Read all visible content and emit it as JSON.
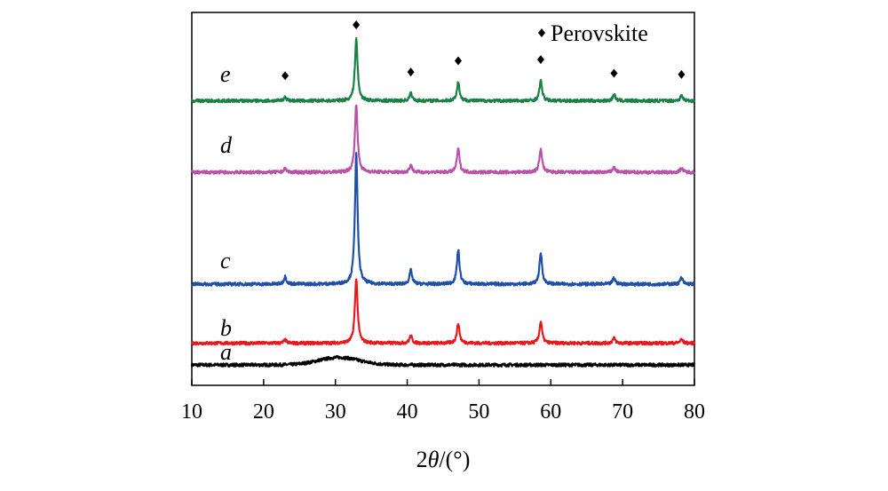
{
  "chart_data": {
    "type": "line",
    "title": "",
    "xlabel_prefix": "2",
    "xlabel_theta": "θ",
    "xlabel_suffix": "/(°)",
    "ylabel": "",
    "xlim": [
      10,
      80
    ],
    "xticks": [
      10,
      20,
      30,
      40,
      50,
      60,
      70,
      80
    ],
    "legend": {
      "marker": "diamond",
      "label": "Perovskite",
      "position": "top-right"
    },
    "marker_positions": [
      23.0,
      32.9,
      40.5,
      47.1,
      58.6,
      68.8,
      78.2
    ],
    "series": [
      {
        "name": "a",
        "color": "#000000",
        "baseline": 0.0,
        "broad_hump": {
          "center": 30.5,
          "width": 4.0,
          "height": 0.12
        },
        "peaks": []
      },
      {
        "name": "b",
        "color": "#e8191c",
        "baseline": 0.35,
        "peaks": [
          [
            23.0,
            0.05
          ],
          [
            32.9,
            1.05
          ],
          [
            40.5,
            0.12
          ],
          [
            47.1,
            0.32
          ],
          [
            58.6,
            0.35
          ],
          [
            68.8,
            0.08
          ],
          [
            78.2,
            0.06
          ]
        ]
      },
      {
        "name": "c",
        "color": "#1f4fa6",
        "baseline": 1.3,
        "peaks": [
          [
            23.0,
            0.12
          ],
          [
            32.9,
            2.1
          ],
          [
            40.5,
            0.22
          ],
          [
            47.1,
            0.55
          ],
          [
            58.6,
            0.5
          ],
          [
            68.8,
            0.1
          ],
          [
            78.2,
            0.1
          ]
        ]
      },
      {
        "name": "d",
        "color": "#b853a8",
        "baseline": 3.1,
        "peaks": [
          [
            23.0,
            0.06
          ],
          [
            32.9,
            1.1
          ],
          [
            40.5,
            0.12
          ],
          [
            47.1,
            0.38
          ],
          [
            58.6,
            0.38
          ],
          [
            68.8,
            0.08
          ],
          [
            78.2,
            0.07
          ]
        ]
      },
      {
        "name": "e",
        "color": "#1a8147",
        "baseline": 4.25,
        "peaks": [
          [
            23.0,
            0.06
          ],
          [
            32.9,
            1.0
          ],
          [
            40.5,
            0.12
          ],
          [
            47.1,
            0.3
          ],
          [
            58.6,
            0.32
          ],
          [
            68.8,
            0.1
          ],
          [
            78.2,
            0.08
          ]
        ]
      }
    ]
  }
}
